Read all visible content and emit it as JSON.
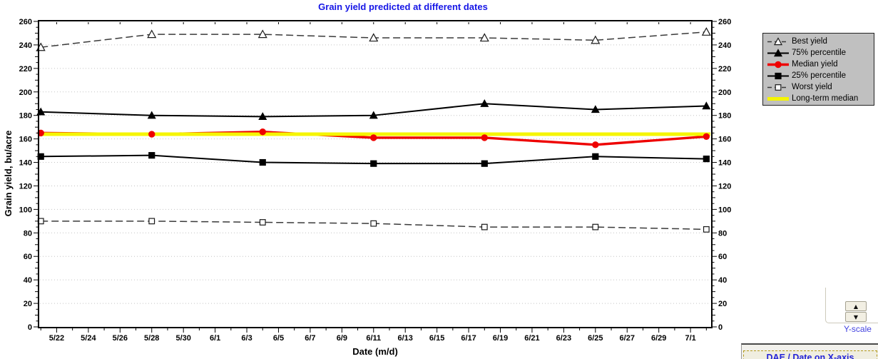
{
  "window": {
    "background": "#FFFFFF"
  },
  "chart_data": {
    "type": "line",
    "title": "Grain yield predicted at different dates",
    "title_color": "#1515E6",
    "xlabel": "Date (m/d)",
    "ylabel": "Grain yield, bu/acre",
    "ylim": [
      0,
      260
    ],
    "y_tick_step": 20,
    "y_ticks": [
      0,
      20,
      40,
      60,
      80,
      100,
      120,
      140,
      160,
      180,
      200,
      220,
      240,
      260
    ],
    "x_tick_labels": [
      "5/22",
      "5/24",
      "5/26",
      "5/28",
      "5/30",
      "6/1",
      "6/3",
      "6/5",
      "6/7",
      "6/9",
      "6/11",
      "6/13",
      "6/15",
      "6/17",
      "6/19",
      "6/21",
      "6/23",
      "6/25",
      "6/27",
      "6/29",
      "7/1"
    ],
    "x_tick_days": [
      1,
      3,
      5,
      7,
      9,
      11,
      13,
      15,
      17,
      19,
      21,
      23,
      25,
      27,
      29,
      31,
      33,
      35,
      37,
      39,
      41
    ],
    "x_day_range": [
      -0.1,
      42.3
    ],
    "grid": "horizontal-dotted",
    "legend_position": "outside-top-right",
    "categories": [
      "5/21",
      "5/28",
      "6/4",
      "6/11",
      "6/18",
      "6/25",
      "7/2"
    ],
    "category_days": [
      0,
      7,
      14,
      21,
      28,
      35,
      42
    ],
    "series": [
      {
        "name": "Best yield",
        "values": [
          238,
          249,
          249,
          246,
          246,
          244,
          251
        ],
        "color": "#3A3A3A",
        "line": "dashed",
        "line_width": 1.5,
        "marker": "triangle-open",
        "marker_size": 5.5
      },
      {
        "name": "75% percentile",
        "values": [
          183,
          180,
          179,
          180,
          190,
          185,
          188
        ],
        "color": "#000000",
        "line": "solid",
        "line_width": 2,
        "marker": "triangle",
        "marker_size": 5
      },
      {
        "name": "Median yield",
        "values": [
          165,
          164,
          166,
          161,
          161,
          155,
          162
        ],
        "color": "#EE0000",
        "line": "solid",
        "line_width": 3.4,
        "marker": "circle",
        "marker_size": 4.2,
        "markers_on_top": true
      },
      {
        "name": "25% percentile",
        "values": [
          145,
          146,
          140,
          139,
          139,
          145,
          143
        ],
        "color": "#000000",
        "line": "solid",
        "line_width": 2,
        "marker": "square",
        "marker_size": 4
      },
      {
        "name": "Worst yield",
        "values": [
          90,
          90,
          89,
          88,
          85,
          85,
          83
        ],
        "color": "#3A3A3A",
        "line": "dashed",
        "line_width": 1.5,
        "marker": "square-open",
        "marker_size": 3.8
      },
      {
        "name": "Long-term median",
        "values": [
          164,
          164,
          164,
          164,
          164,
          164,
          164
        ],
        "color": "#F5F500",
        "line": "solid",
        "line_width": 5,
        "marker": "none",
        "marker_size": 0,
        "span_full": true
      }
    ],
    "paint_order": [
      0,
      1,
      3,
      4,
      2,
      5
    ]
  },
  "icons": {
    "spinner_up": "▲",
    "spinner_down": "▼"
  },
  "controls": {
    "y_scale_label": "Y-scale",
    "x_axis_button_label": "DAE / Date on X-axis"
  }
}
